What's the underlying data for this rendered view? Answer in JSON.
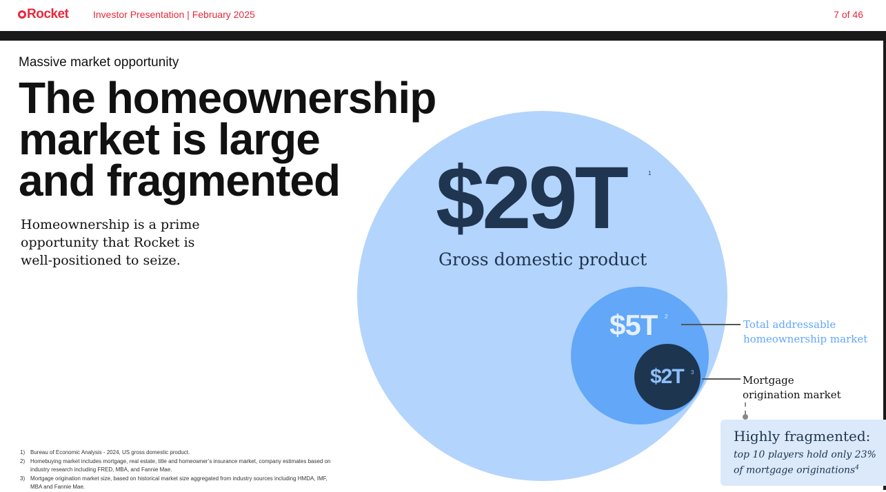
{
  "header": {
    "logo_text": "Rocket",
    "title": "Investor Presentation | February 2025",
    "page": "7 of 46"
  },
  "eyebrow": "Massive market opportunity",
  "headline": [
    "The homeownership",
    "market is large",
    "and fragmented"
  ],
  "subcopy": "Homeownership is a prime opportunity that Rocket is well-positioned to seize.",
  "circles": {
    "gdp": {
      "value": "$29T",
      "note": "1",
      "label": "Gross domestic product"
    },
    "tam": {
      "value": "$5T",
      "note": "2",
      "label_lines": [
        "Total addressable",
        "homeownership market"
      ]
    },
    "mortgage": {
      "value": "$2T",
      "note": "3",
      "label_lines": [
        "Mortgage",
        "origination market"
      ]
    }
  },
  "callout": {
    "title": "Highly fragmented:",
    "body": "top 10 players hold only 23% of mortgage originations",
    "note": "4"
  },
  "footnotes": [
    {
      "num": "1)",
      "text": "Bureau of Economic Analysis - 2024, US gross domestic product."
    },
    {
      "num": "2)",
      "text": "Homebuying market includes mortgage, real estate, title and homeowner’s insurance market, company estimates based on industry research including FRED, MBA, and Fannie Mae."
    },
    {
      "num": "3)",
      "text": "Mortgage origination market size, based on historical market size aggregated from industry sources including HMDA, IMF, MBA and Fannie Mae."
    }
  ],
  "colors": {
    "brand_red": "#e8283a",
    "light_blue": "#b3d4fc",
    "mid_blue": "#62a7f8",
    "navy": "#1e3550"
  }
}
